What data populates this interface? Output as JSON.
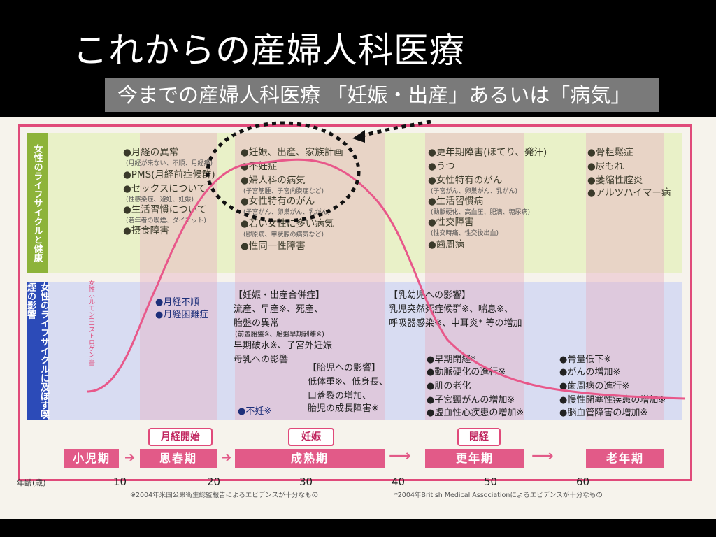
{
  "slide": {
    "title": "これからの産婦人科医療",
    "subtitle": "今までの産婦人科医療 「妊娠・出産」あるいは「病気」"
  },
  "side_labels": {
    "top": "女性のライフサイクルと健康",
    "bottom": "女性のライフサイクルに及ぼす喫煙の影響"
  },
  "hormone_label": "女性ホルモン(エストロゲン)量",
  "health": {
    "col1": [
      "●月経の異常",
      "(月経が来ない、不順、月経痛)",
      "●PMS(月経前症候群)",
      "●セックスについて",
      "(性感染症、避妊、妊娠)",
      "●生活習慣について",
      "(若年者の喫煙、ダイエット)",
      "●摂食障害"
    ],
    "col2": [
      "●妊娠、出産、家族計画",
      "●不妊症",
      "●婦人科の病気",
      "(子宮筋腫、子宮内膜症など)",
      "●女性特有のがん",
      "(子宮がん、卵巣がん、乳がん)",
      "●若い女性に多い病気",
      "(膠原病、甲状腺の病気など)",
      "●性同一性障害"
    ],
    "col3": [
      "●更年期障害(ほてり、発汗)",
      "●うつ",
      "●女性特有のがん",
      "(子宮がん、卵巣がん、乳がん)",
      "●生活習慣病",
      "(動脈硬化、高血圧、肥満、糖尿病)",
      "●性交障害",
      "(性交時痛、性交後出血)",
      "●歯周病"
    ],
    "col4": [
      "●骨粗鬆症",
      "●尿もれ",
      "●萎縮性腟炎",
      "●アルツハイマー病"
    ]
  },
  "smoking": {
    "puberty": [
      "●月経不順",
      "●月経困難症"
    ],
    "pregnancy": [
      "【妊娠・出産合併症】",
      "流産、早産※、死産、",
      "胎盤の異常",
      "(前置胎盤※、胎盤早期剥離※)",
      "早期破水※、子宮外妊娠",
      "母乳への影響"
    ],
    "fetus": [
      "【胎児への影響】",
      "低体重※、低身長、",
      "口蓋裂の増加、",
      "胎児の成長障害※"
    ],
    "infertility": "●不妊※",
    "infant": [
      "【乳幼児への影響】",
      "乳児突然死症候群※、喘息※、",
      "呼吸器感染※、中耳炎* 等の増加"
    ],
    "menopause": [
      "●早期閉経*",
      "●動脈硬化の進行※",
      "●肌の老化",
      "●子宮頸がんの増加※",
      "●虚血性心疾患の増加※"
    ],
    "elderly": [
      "●骨量低下※",
      "●がんの増加※",
      "●歯周病の進行※",
      "●慢性閉塞性疾患の増加※",
      "●脳血管障害の増加※"
    ]
  },
  "events": [
    "月経開始",
    "妊娠",
    "閉経"
  ],
  "stages": [
    "小児期",
    "思春期",
    "成熟期",
    "更年期",
    "老年期"
  ],
  "axis": {
    "label": "年齢(歳)",
    "ticks": [
      "10",
      "20",
      "30",
      "40",
      "50",
      "60"
    ]
  },
  "notes": [
    "※2004年米国公衆衛生総監報告によるエビデンスが十分なもの",
    "*2004年British Medical Associationによるエビデンスが十分なもの"
  ],
  "colors": {
    "curve": "#e8588a",
    "health_band": "#e9f1c8",
    "smoking_band": "#d8dcf2",
    "stage": "#e25a88"
  }
}
